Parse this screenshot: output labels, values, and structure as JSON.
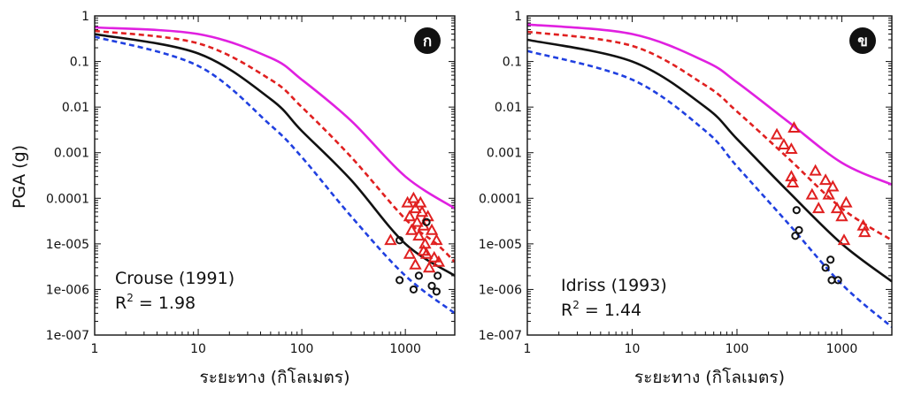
{
  "ylabel": "PGA (g)",
  "chart_data": [
    {
      "type": "line+scatter",
      "panel_label": "ก",
      "annotation_line1": "Crouse (1991)",
      "r2_prefix": "R",
      "r2_sup": "2",
      "r2_value": " = 1.98",
      "xlabel": "ระยะทาง (กิโลเมตร)",
      "x_scale": "log",
      "y_scale": "log",
      "xlim": [
        1,
        3000
      ],
      "ylim": [
        1e-07,
        1
      ],
      "x_ticks": [
        1,
        10,
        100,
        1000
      ],
      "x_tick_labels": [
        "1",
        "10",
        "100",
        "1000"
      ],
      "y_ticks": [
        1,
        0.1,
        0.01,
        0.001,
        0.0001,
        1e-05,
        1e-06,
        1e-07
      ],
      "y_tick_labels": [
        "1",
        "0.1",
        "0.01",
        "0.001",
        "0.0001",
        "1e-005",
        "1e-006",
        "1e-007"
      ],
      "curves": [
        {
          "color": "#e020e0",
          "style": "solid",
          "x": [
            1,
            10,
            50,
            100,
            300,
            1000,
            3000
          ],
          "y": [
            0.56,
            0.4,
            0.12,
            0.04,
            0.005,
            0.0003,
            6e-05
          ]
        },
        {
          "color": "#e02020",
          "style": "dashed",
          "x": [
            1,
            10,
            50,
            100,
            300,
            1000,
            2000,
            3000
          ],
          "y": [
            0.47,
            0.25,
            0.04,
            0.01,
            0.0008,
            3.5e-05,
            1e-05,
            4e-06
          ]
        },
        {
          "color": "#111111",
          "style": "solid",
          "x": [
            1,
            10,
            50,
            100,
            300,
            1000,
            3000
          ],
          "y": [
            0.4,
            0.15,
            0.015,
            0.003,
            0.00025,
            1e-05,
            2e-06
          ]
        },
        {
          "color": "#2040e0",
          "style": "dashed",
          "x": [
            1,
            10,
            50,
            100,
            300,
            1000,
            3000
          ],
          "y": [
            0.35,
            0.08,
            0.004,
            0.0008,
            4e-05,
            2e-06,
            3e-07
          ]
        }
      ],
      "observed_triangles": [
        {
          "x": 720,
          "y": 1.2e-05
        },
        {
          "x": 1050,
          "y": 8e-05
        },
        {
          "x": 1100,
          "y": 4e-05
        },
        {
          "x": 1150,
          "y": 2e-05
        },
        {
          "x": 1200,
          "y": 0.0001
        },
        {
          "x": 1250,
          "y": 6e-05
        },
        {
          "x": 1300,
          "y": 3e-05
        },
        {
          "x": 1350,
          "y": 1.5e-05
        },
        {
          "x": 1400,
          "y": 8e-05
        },
        {
          "x": 1450,
          "y": 5e-05
        },
        {
          "x": 1500,
          "y": 2.5e-05
        },
        {
          "x": 1550,
          "y": 1e-05
        },
        {
          "x": 1600,
          "y": 6e-06
        },
        {
          "x": 1650,
          "y": 4e-05
        },
        {
          "x": 1700,
          "y": 3e-06
        },
        {
          "x": 1800,
          "y": 2e-05
        },
        {
          "x": 1900,
          "y": 5e-06
        },
        {
          "x": 2000,
          "y": 1.2e-05
        },
        {
          "x": 1100,
          "y": 6e-06
        },
        {
          "x": 1250,
          "y": 3.5e-06
        },
        {
          "x": 1500,
          "y": 7e-06
        },
        {
          "x": 2100,
          "y": 4e-06
        }
      ],
      "observed_circles": [
        {
          "x": 880,
          "y": 1.2e-05
        },
        {
          "x": 880,
          "y": 1.6e-06
        },
        {
          "x": 1200,
          "y": 1e-06
        },
        {
          "x": 1350,
          "y": 2e-06
        },
        {
          "x": 1600,
          "y": 3e-05
        },
        {
          "x": 1800,
          "y": 1.2e-06
        },
        {
          "x": 2000,
          "y": 9e-07
        },
        {
          "x": 2050,
          "y": 2e-06
        }
      ]
    },
    {
      "type": "line+scatter",
      "panel_label": "ข",
      "annotation_line1": "Idriss (1993)",
      "r2_prefix": "R",
      "r2_sup": "2",
      "r2_value": " = 1.44",
      "xlabel": "ระยะทาง (กิโลเมตร)",
      "x_scale": "log",
      "y_scale": "log",
      "xlim": [
        1,
        3000
      ],
      "ylim": [
        1e-07,
        1
      ],
      "x_ticks": [
        1,
        10,
        100,
        1000
      ],
      "x_tick_labels": [
        "1",
        "10",
        "100",
        "1000"
      ],
      "y_ticks": [
        1,
        0.1,
        0.01,
        0.001,
        0.0001,
        1e-05,
        1e-06,
        1e-07
      ],
      "y_tick_labels": [
        "1",
        "0.1",
        "0.01",
        "0.001",
        "0.0001",
        "1e-005",
        "1e-006",
        "1e-007"
      ],
      "curves": [
        {
          "color": "#e020e0",
          "style": "solid",
          "x": [
            1,
            10,
            50,
            100,
            300,
            1000,
            3000
          ],
          "y": [
            0.65,
            0.4,
            0.1,
            0.035,
            0.005,
            0.0006,
            0.0002
          ]
        },
        {
          "color": "#e02020",
          "style": "dashed",
          "x": [
            1,
            10,
            50,
            100,
            300,
            1000,
            3000
          ],
          "y": [
            0.45,
            0.22,
            0.03,
            0.008,
            0.0008,
            6e-05,
            1.2e-05
          ]
        },
        {
          "color": "#111111",
          "style": "solid",
          "x": [
            1,
            10,
            50,
            100,
            300,
            1000,
            3000
          ],
          "y": [
            0.3,
            0.1,
            0.01,
            0.002,
            0.00015,
            1e-05,
            1.5e-06
          ]
        },
        {
          "color": "#2040e0",
          "style": "dashed",
          "x": [
            1,
            10,
            50,
            100,
            300,
            1000,
            3000
          ],
          "y": [
            0.17,
            0.04,
            0.003,
            0.0005,
            3e-05,
            1.3e-06,
            1.5e-07
          ]
        }
      ],
      "observed_triangles": [
        {
          "x": 240,
          "y": 0.0025
        },
        {
          "x": 280,
          "y": 0.0015
        },
        {
          "x": 330,
          "y": 0.0012
        },
        {
          "x": 350,
          "y": 0.0035
        },
        {
          "x": 330,
          "y": 0.0003
        },
        {
          "x": 340,
          "y": 0.00022
        },
        {
          "x": 520,
          "y": 0.00012
        },
        {
          "x": 560,
          "y": 0.0004
        },
        {
          "x": 600,
          "y": 6e-05
        },
        {
          "x": 700,
          "y": 0.00025
        },
        {
          "x": 750,
          "y": 0.00012
        },
        {
          "x": 820,
          "y": 0.00018
        },
        {
          "x": 900,
          "y": 6e-05
        },
        {
          "x": 1000,
          "y": 4e-05
        },
        {
          "x": 1050,
          "y": 1.2e-05
        },
        {
          "x": 1100,
          "y": 8e-05
        },
        {
          "x": 1600,
          "y": 2.5e-05
        },
        {
          "x": 1650,
          "y": 1.8e-05
        }
      ],
      "observed_circles": [
        {
          "x": 370,
          "y": 5.5e-05
        },
        {
          "x": 360,
          "y": 1.5e-05
        },
        {
          "x": 390,
          "y": 2e-05
        },
        {
          "x": 700,
          "y": 3e-06
        },
        {
          "x": 780,
          "y": 4.5e-06
        },
        {
          "x": 800,
          "y": 1.6e-06
        },
        {
          "x": 920,
          "y": 1.6e-06
        }
      ]
    }
  ]
}
